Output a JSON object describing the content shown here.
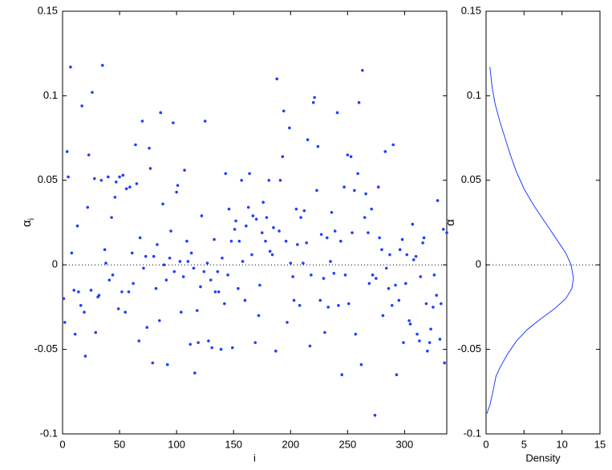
{
  "chart_data": [
    {
      "type": "scatter",
      "xlabel": "i",
      "ylabel": "α",
      "ylabel_subscript": "i",
      "color": "#1f3fff",
      "reference_line": 0,
      "xlim": [
        0,
        337
      ],
      "xticks": [
        0,
        50,
        100,
        150,
        200,
        250,
        300
      ],
      "ylim": [
        -0.1,
        0.15
      ],
      "yticks": [
        -0.1,
        -0.05,
        0,
        0.05,
        0.1,
        0.15
      ],
      "x": [
        1,
        2,
        4,
        5,
        7,
        8,
        10,
        11,
        13,
        14,
        16,
        17,
        19,
        20,
        22,
        23,
        25,
        26,
        28,
        29,
        31,
        32,
        34,
        35,
        37,
        38,
        40,
        41,
        43,
        44,
        46,
        47,
        49,
        50,
        52,
        53,
        55,
        56,
        58,
        59,
        61,
        62,
        64,
        65,
        67,
        68,
        70,
        71,
        73,
        74,
        76,
        77,
        79,
        80,
        82,
        83,
        85,
        86,
        88,
        89,
        91,
        92,
        94,
        95,
        97,
        98,
        100,
        101,
        103,
        104,
        106,
        107,
        109,
        110,
        112,
        113,
        115,
        116,
        118,
        119,
        121,
        122,
        124,
        125,
        127,
        128,
        130,
        131,
        133,
        134,
        136,
        137,
        139,
        140,
        142,
        143,
        145,
        146,
        148,
        149,
        151,
        152,
        154,
        155,
        157,
        158,
        160,
        161,
        163,
        164,
        166,
        167,
        169,
        170,
        172,
        173,
        175,
        176,
        178,
        179,
        181,
        182,
        184,
        185,
        187,
        188,
        190,
        191,
        193,
        194,
        196,
        197,
        199,
        200,
        202,
        203,
        205,
        206,
        208,
        209,
        211,
        212,
        214,
        215,
        217,
        218,
        220,
        221,
        223,
        224,
        226,
        227,
        229,
        230,
        232,
        233,
        235,
        236,
        238,
        239,
        241,
        242,
        244,
        245,
        247,
        248,
        250,
        251,
        253,
        254,
        256,
        257,
        259,
        260,
        262,
        263,
        265,
        266,
        268,
        269,
        271,
        272,
        274,
        275,
        277,
        278,
        280,
        281,
        283,
        284,
        286,
        287,
        289,
        290,
        292,
        293,
        295,
        296,
        298,
        299,
        301,
        302,
        304,
        305,
        307,
        308,
        310,
        311,
        313,
        314,
        316,
        317,
        319,
        320,
        322,
        323,
        325,
        326,
        328,
        329,
        331,
        332,
        334,
        335,
        337
      ],
      "y": [
        -0.02,
        -0.034,
        0.067,
        0.052,
        0.117,
        0.007,
        -0.015,
        -0.041,
        0.023,
        -0.016,
        -0.024,
        0.094,
        -0.028,
        -0.054,
        0.034,
        0.065,
        -0.015,
        0.102,
        0.051,
        -0.04,
        -0.019,
        -0.018,
        0.05,
        0.118,
        0.009,
        0.001,
        0.052,
        -0.009,
        0.028,
        -0.006,
        0.04,
        0.049,
        -0.026,
        0.052,
        -0.016,
        0.053,
        -0.028,
        0.045,
        -0.016,
        0.046,
        0.007,
        -0.011,
        0.071,
        0.048,
        -0.045,
        0.016,
        0.085,
        -0.002,
        0.005,
        -0.037,
        0.069,
        0.057,
        -0.058,
        0.005,
        -0.014,
        0.012,
        -0.033,
        0.09,
        0.036,
        0.0,
        -0.009,
        -0.059,
        0.004,
        0.02,
        0.084,
        -0.004,
        0.043,
        0.047,
        0.002,
        -0.028,
        -0.007,
        0.056,
        0.014,
        0.002,
        -0.047,
        0.007,
        -0.002,
        -0.064,
        -0.027,
        -0.046,
        -0.013,
        0.029,
        -0.004,
        0.085,
        0.001,
        -0.045,
        -0.009,
        -0.049,
        0.015,
        -0.016,
        -0.004,
        -0.016,
        -0.05,
        0.004,
        -0.023,
        0.054,
        -0.006,
        0.033,
        0.014,
        -0.049,
        0.021,
        0.026,
        -0.014,
        0.014,
        0.05,
        0.002,
        -0.021,
        0.023,
        0.034,
        0.054,
        0.006,
        0.029,
        -0.046,
        0.027,
        -0.03,
        -0.012,
        0.019,
        0.037,
        0.014,
        0.028,
        0.05,
        0.008,
        0.006,
        0.022,
        -0.051,
        0.11,
        0.02,
        0.05,
        0.064,
        0.091,
        0.014,
        -0.034,
        0.081,
        0.001,
        -0.007,
        -0.021,
        0.033,
        0.012,
        -0.024,
        0.028,
        0.001,
        0.032,
        0.013,
        0.074,
        -0.048,
        -0.006,
        0.096,
        0.099,
        0.044,
        0.07,
        -0.021,
        0.018,
        -0.008,
        -0.04,
        0.016,
        -0.025,
        0.002,
        0.031,
        -0.005,
        0.02,
        0.09,
        -0.024,
        0.014,
        -0.065,
        0.046,
        -0.006,
        0.065,
        -0.023,
        0.064,
        0.019,
        0.044,
        -0.041,
        0.054,
        0.096,
        -0.059,
        0.115,
        0.028,
        0.042,
        0.019,
        -0.011,
        0.033,
        -0.006,
        -0.089,
        -0.008,
        0.046,
        0.016,
        0.009,
        -0.03,
        0.067,
        -0.002,
        -0.014,
        0.006,
        -0.024,
        0.071,
        -0.012,
        -0.065,
        -0.021,
        0.009,
        0.015,
        -0.046,
        -0.011,
        0.006,
        -0.033,
        -0.035,
        0.024,
        0.003,
        0.005,
        -0.041,
        -0.045,
        -0.007,
        0.013,
        0.016,
        -0.023,
        -0.051,
        -0.046,
        -0.038,
        -0.025,
        -0.006,
        -0.018,
        0.038,
        -0.044,
        -0.023,
        0.021,
        -0.058,
        0.019
      ]
    },
    {
      "type": "line",
      "xlabel": "Density",
      "ylabel": "α",
      "color": "#1f3fff",
      "reference_line": 0,
      "xlim": [
        0,
        15
      ],
      "xticks": [
        0,
        5,
        10,
        15
      ],
      "ylim": [
        -0.1,
        0.15
      ],
      "yticks": [
        -0.1,
        -0.05,
        0,
        0.05,
        0.1,
        0.15
      ],
      "x": [
        0.5,
        0.8,
        1.2,
        1.8,
        2.5,
        3.2,
        4.0,
        5.0,
        6.3,
        7.8,
        9.3,
        10.5,
        11.2,
        11.5,
        11.3,
        10.5,
        9.0,
        7.2,
        5.5,
        4.0,
        2.8,
        1.8,
        1.3,
        0.9,
        0.5,
        0.1
      ],
      "y": [
        0.117,
        0.105,
        0.095,
        0.085,
        0.075,
        0.065,
        0.055,
        0.045,
        0.035,
        0.025,
        0.015,
        0.007,
        0.0,
        -0.008,
        -0.014,
        -0.02,
        -0.026,
        -0.032,
        -0.038,
        -0.045,
        -0.053,
        -0.061,
        -0.066,
        -0.075,
        -0.083,
        -0.088
      ]
    }
  ]
}
